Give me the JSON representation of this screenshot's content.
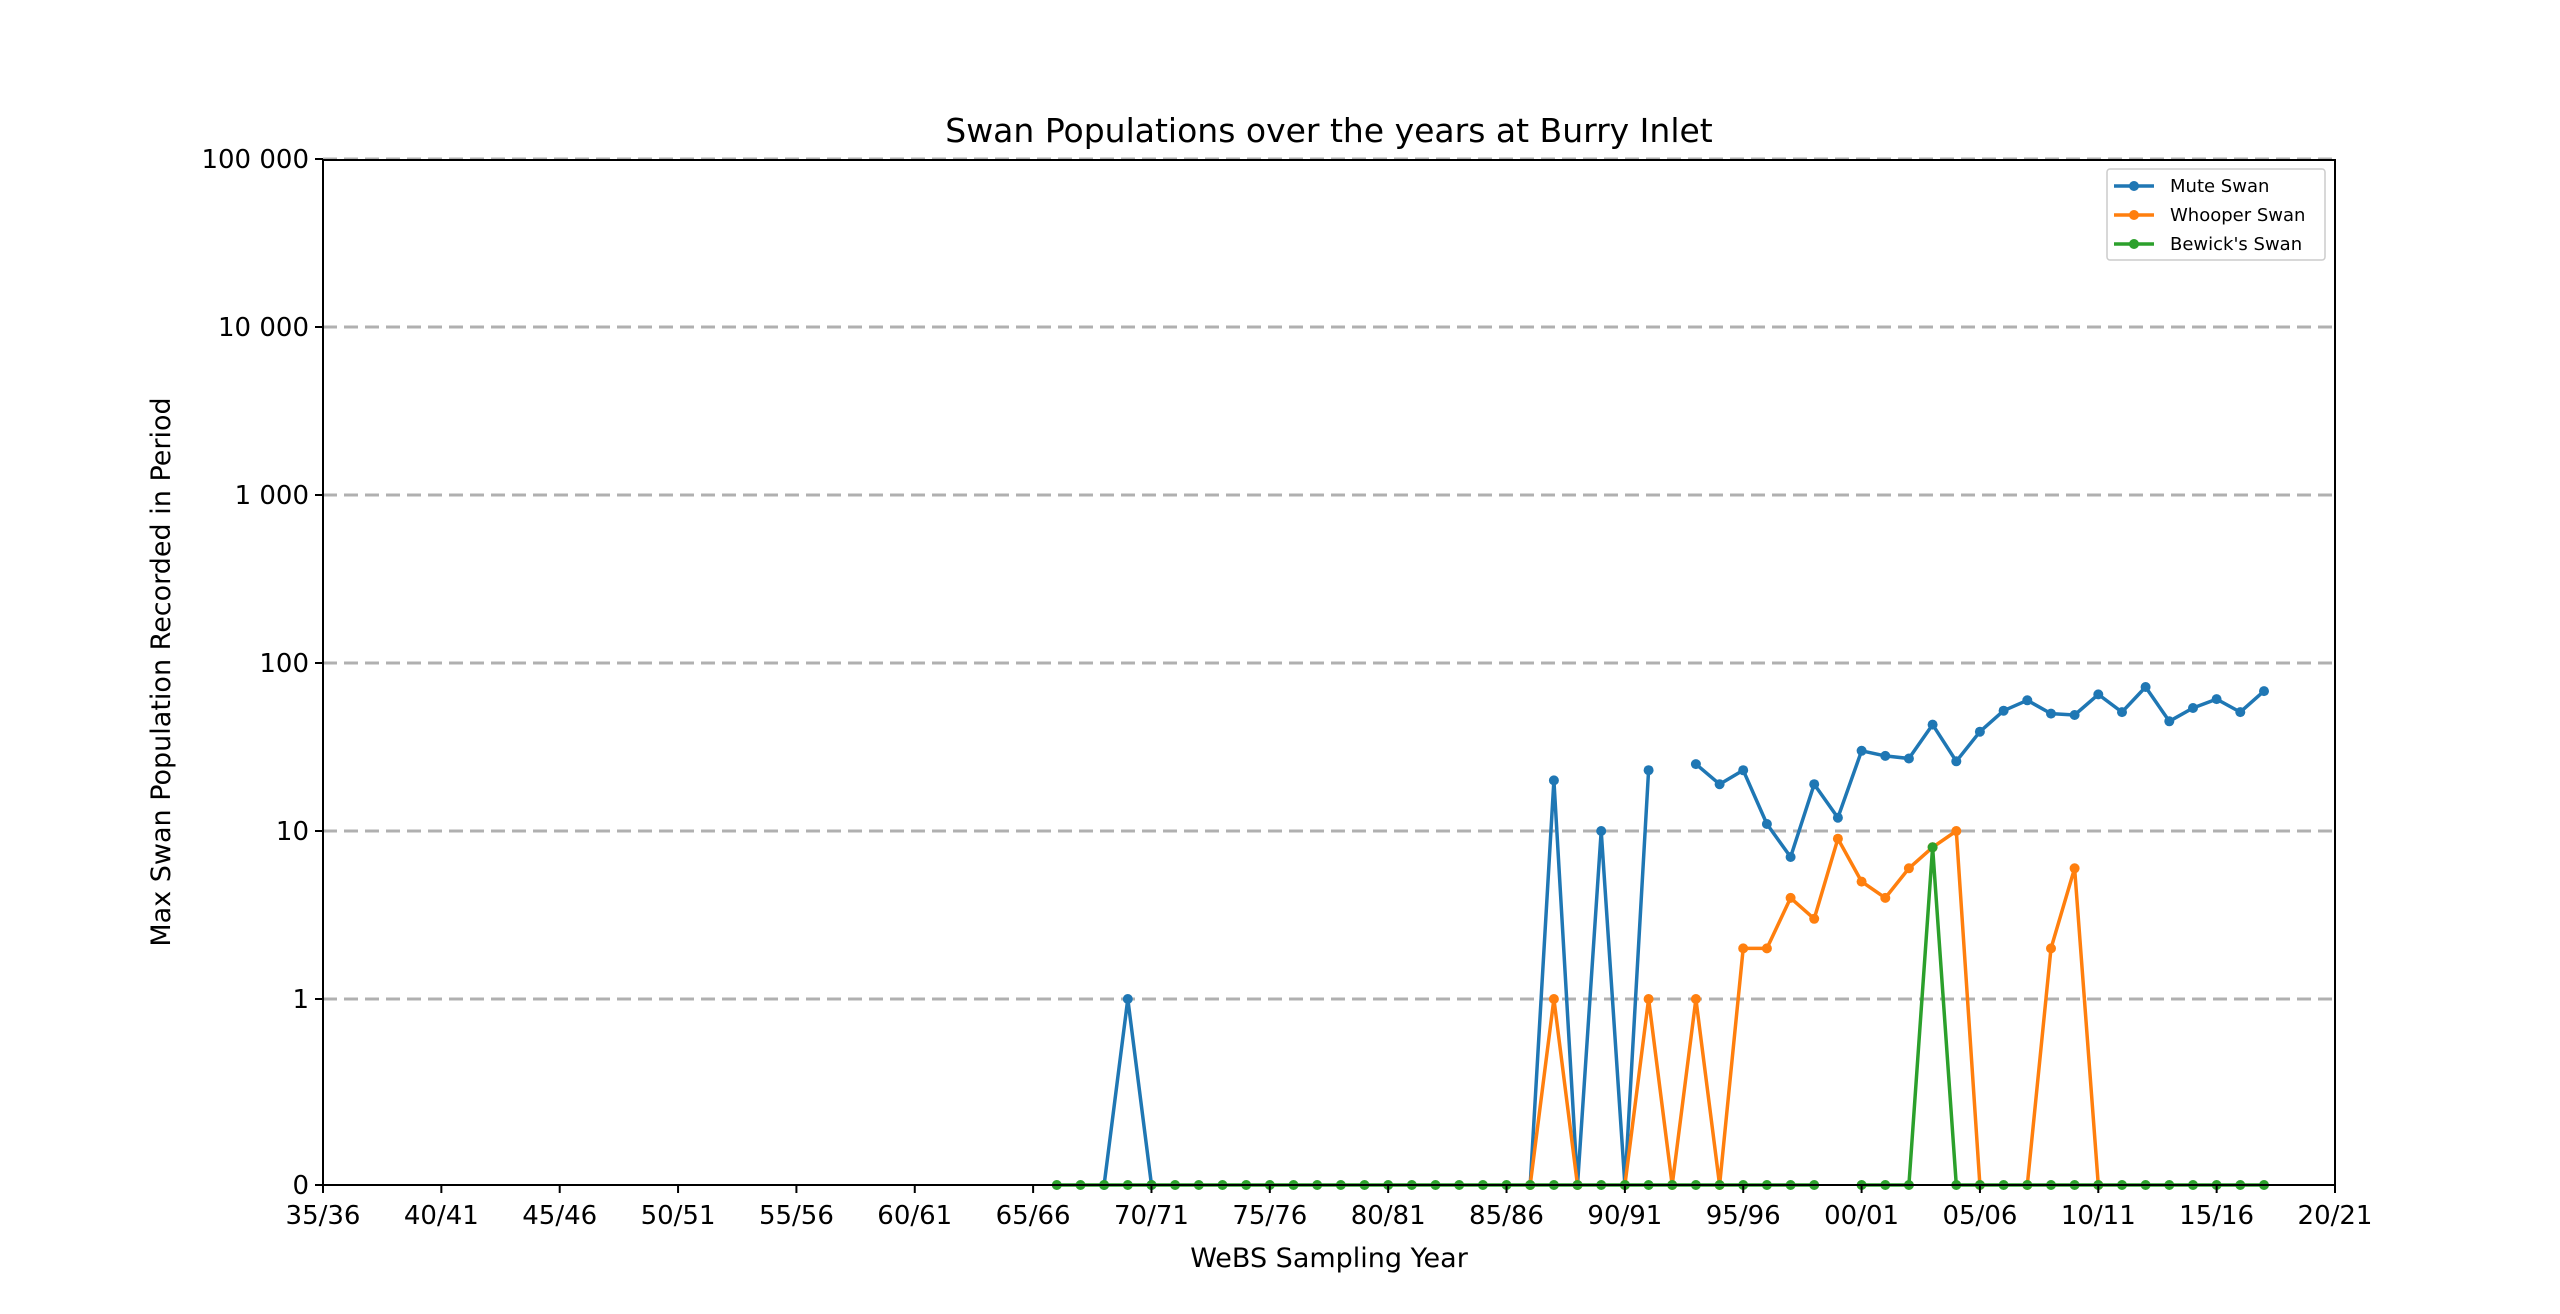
{
  "chart_data": {
    "type": "line",
    "title": "Swan Populations over the years at Burry Inlet",
    "xlabel": "WeBS Sampling Year",
    "ylabel": "Max Swan Population Recorded in Period",
    "yscale": "symlog",
    "ylim": [
      0,
      100000
    ],
    "yticks": [
      0,
      1,
      10,
      100,
      1000,
      10000,
      100000
    ],
    "ytick_labels": [
      "0",
      "1",
      "10",
      "100",
      "1 000",
      "10 000",
      "100 000"
    ],
    "xlim": [
      1935,
      2020
    ],
    "xticks": [
      1935,
      1940,
      1945,
      1950,
      1955,
      1960,
      1965,
      1970,
      1975,
      1980,
      1985,
      1990,
      1995,
      2000,
      2005,
      2010,
      2015,
      2020
    ],
    "xtick_labels": [
      "35/36",
      "40/41",
      "45/46",
      "50/51",
      "55/56",
      "60/61",
      "65/66",
      "70/71",
      "75/76",
      "80/81",
      "85/86",
      "90/91",
      "95/96",
      "00/01",
      "05/06",
      "10/11",
      "15/16",
      "20/21"
    ],
    "grid": "horizontal dashed",
    "legend_position": "top-right",
    "series": [
      {
        "name": "Mute Swan",
        "color": "#1f77b4",
        "x": [
          1966,
          1967,
          1968,
          1969,
          1970,
          1971,
          1972,
          1973,
          1974,
          1975,
          1976,
          1977,
          1978,
          1979,
          1980,
          1981,
          1982,
          1983,
          1984,
          1985,
          1986,
          1987,
          1988,
          1989,
          1990,
          1991,
          1992,
          1993,
          1994,
          1995,
          1996,
          1997,
          1998,
          1999,
          2000,
          2001,
          2002,
          2003,
          2004,
          2005,
          2006,
          2007,
          2008,
          2009,
          2010,
          2011,
          2012,
          2013,
          2014,
          2015,
          2016,
          2017
        ],
        "y": [
          null,
          null,
          0,
          1,
          0,
          null,
          null,
          null,
          null,
          null,
          null,
          null,
          null,
          null,
          null,
          null,
          null,
          null,
          null,
          null,
          0,
          20,
          0,
          10,
          0,
          23,
          null,
          25,
          19,
          23,
          11,
          7,
          19,
          12,
          30,
          28,
          27,
          43,
          26,
          39,
          52,
          60,
          50,
          49,
          65,
          51,
          72,
          45,
          54,
          61,
          51,
          68
        ]
      },
      {
        "name": "Whooper Swan",
        "color": "#ff7f0e",
        "x": [
          1966,
          1967,
          1968,
          1969,
          1970,
          1971,
          1972,
          1973,
          1974,
          1975,
          1976,
          1977,
          1978,
          1979,
          1980,
          1981,
          1982,
          1983,
          1984,
          1985,
          1986,
          1987,
          1988,
          1989,
          1990,
          1991,
          1992,
          1993,
          1994,
          1995,
          1996,
          1997,
          1998,
          1999,
          2000,
          2001,
          2002,
          2003,
          2004,
          2005,
          2006,
          2007,
          2008,
          2009,
          2010,
          2011,
          2012,
          2013,
          2014,
          2015,
          2016,
          2017
        ],
        "y": [
          null,
          null,
          null,
          null,
          null,
          null,
          null,
          null,
          null,
          null,
          null,
          null,
          null,
          null,
          null,
          null,
          null,
          null,
          null,
          null,
          0,
          1,
          0,
          null,
          0,
          1,
          0,
          1,
          0,
          2,
          2,
          4,
          3,
          9,
          5,
          4,
          6,
          8,
          10,
          0,
          null,
          0,
          2,
          6,
          0,
          null,
          null,
          null,
          null,
          null,
          null,
          null
        ]
      },
      {
        "name": "Bewick's Swan",
        "color": "#2ca02c",
        "x": [
          1966,
          1967,
          1968,
          1969,
          1970,
          1971,
          1972,
          1973,
          1974,
          1975,
          1976,
          1977,
          1978,
          1979,
          1980,
          1981,
          1982,
          1983,
          1984,
          1985,
          1986,
          1987,
          1988,
          1989,
          1990,
          1991,
          1992,
          1993,
          1994,
          1995,
          1996,
          1997,
          1998,
          1999,
          2000,
          2001,
          2002,
          2003,
          2004,
          2005,
          2006,
          2007,
          2008,
          2009,
          2010,
          2011,
          2012,
          2013,
          2014,
          2015,
          2016,
          2017
        ],
        "y": [
          0,
          0,
          0,
          0,
          0,
          0,
          0,
          0,
          0,
          0,
          0,
          0,
          0,
          0,
          0,
          0,
          0,
          0,
          0,
          0,
          0,
          0,
          0,
          0,
          0,
          0,
          0,
          0,
          0,
          0,
          0,
          0,
          0,
          null,
          0,
          0,
          0,
          8,
          0,
          0,
          0,
          0,
          0,
          0,
          0,
          0,
          0,
          0,
          0,
          0,
          0,
          0
        ]
      }
    ]
  }
}
